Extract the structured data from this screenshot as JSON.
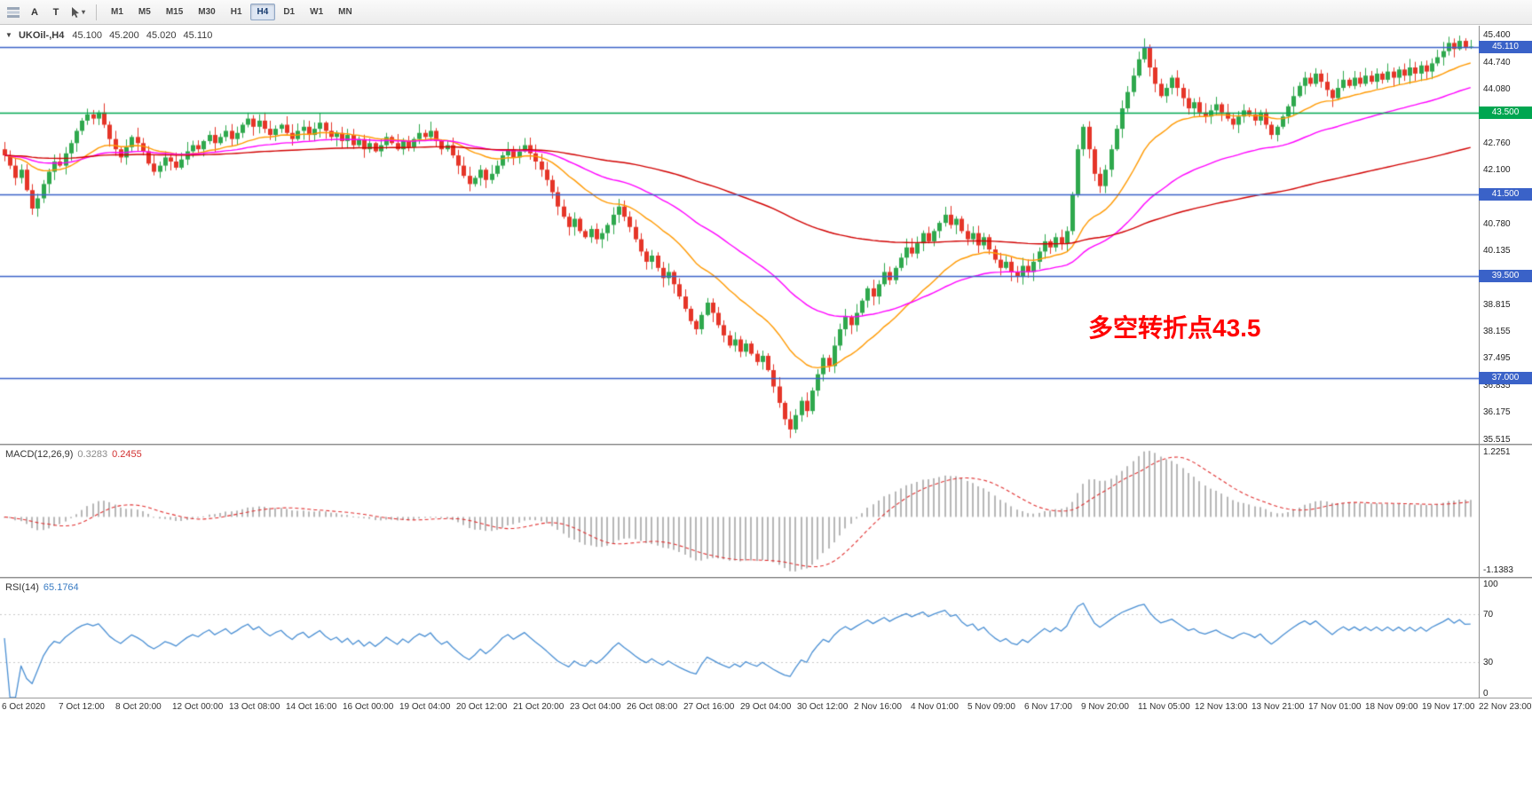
{
  "toolbar": {
    "tools": [
      {
        "label": "A"
      },
      {
        "label": "T"
      }
    ],
    "timeframes": [
      "M1",
      "M5",
      "M15",
      "M30",
      "H1",
      "H4",
      "D1",
      "W1",
      "MN"
    ],
    "active_timeframe": "H4"
  },
  "main_chart": {
    "symbol_period": "UKOil-,H4",
    "ohlc": {
      "open": "45.100",
      "high": "45.200",
      "low": "45.020",
      "close": "45.110"
    },
    "annotation": "多空转折点43.5",
    "y_ticks": [
      "45.400",
      "44.740",
      "44.080",
      "42.760",
      "42.100",
      "40.780",
      "40.135",
      "38.815",
      "38.155",
      "37.495",
      "36.835",
      "36.175",
      "35.515"
    ],
    "price_tags": [
      {
        "label": "45.110",
        "value": 45.11,
        "bg": "#3a62c8"
      },
      {
        "label": "43.500",
        "value": 43.5,
        "bg": "#00a651"
      },
      {
        "label": "41.500",
        "value": 41.5,
        "bg": "#3a62c8"
      },
      {
        "label": "39.500",
        "value": 39.5,
        "bg": "#3a62c8"
      },
      {
        "label": "37.000",
        "value": 37.0,
        "bg": "#3a62c8"
      }
    ],
    "h_lines": [
      {
        "value": 45.11,
        "color": "#3a62c8"
      },
      {
        "value": 43.5,
        "color": "#00a651"
      },
      {
        "value": 41.5,
        "color": "#3a62c8"
      },
      {
        "value": 39.5,
        "color": "#3a62c8"
      },
      {
        "value": 37.0,
        "color": "#3a62c8"
      }
    ],
    "scale": {
      "min": 35.4,
      "max": 45.62
    }
  },
  "macd_panel": {
    "label": "MACD(12,26,9)",
    "values": [
      "0.3283",
      "0.2455"
    ],
    "y_ticks": [
      "1.2251",
      "-1.1383"
    ],
    "params": {
      "fast": 12,
      "slow": 26,
      "signal": 9
    }
  },
  "rsi_panel": {
    "label": "RSI(14)",
    "value": "65.1764",
    "period": 14,
    "y_ticks": [
      "100",
      "70",
      "30",
      "0"
    ],
    "levels": [
      70,
      30
    ]
  },
  "x_axis": {
    "labels": [
      "6 Oct 2020",
      "7 Oct 12:00",
      "8 Oct 20:00",
      "12 Oct 00:00",
      "13 Oct 08:00",
      "14 Oct 16:00",
      "16 Oct 00:00",
      "19 Oct 04:00",
      "20 Oct 12:00",
      "21 Oct 20:00",
      "23 Oct 04:00",
      "26 Oct 08:00",
      "27 Oct 16:00",
      "29 Oct 04:00",
      "30 Oct 12:00",
      "2 Nov 16:00",
      "4 Nov 01:00",
      "5 Nov 09:00",
      "6 Nov 17:00",
      "9 Nov 20:00",
      "11 Nov 05:00",
      "12 Nov 13:00",
      "13 Nov 21:00",
      "17 Nov 01:00",
      "18 Nov 09:00",
      "19 Nov 17:00",
      "22 Nov 23:00"
    ]
  },
  "colors": {
    "up": "#2fa84d",
    "down": "#e53528",
    "macd_hist": "#b7b7b7",
    "macd_signal": "#e03131",
    "rsi": "#4a8fd3",
    "rsi_levels": "#c9c9c9"
  },
  "chart_data": {
    "type": "candlestick",
    "symbol": "UKOil-",
    "timeframe": "H4",
    "first_open": 42.6,
    "closes": [
      42.45,
      42.2,
      41.9,
      42.1,
      41.6,
      41.15,
      41.4,
      41.75,
      42.05,
      42.3,
      42.2,
      42.5,
      42.75,
      43.05,
      43.3,
      43.45,
      43.35,
      43.5,
      43.2,
      42.85,
      42.6,
      42.4,
      42.65,
      42.9,
      42.75,
      42.55,
      42.25,
      42.05,
      42.2,
      42.4,
      42.3,
      42.15,
      42.35,
      42.55,
      42.7,
      42.6,
      42.8,
      42.95,
      42.75,
      42.9,
      43.05,
      42.85,
      43.0,
      43.2,
      43.35,
      43.15,
      43.3,
      43.1,
      42.95,
      43.1,
      43.2,
      43.0,
      42.85,
      43.05,
      43.15,
      42.95,
      43.1,
      43.25,
      43.05,
      42.9,
      43.0,
      42.8,
      42.95,
      42.7,
      42.85,
      42.6,
      42.75,
      42.55,
      42.7,
      42.9,
      42.75,
      42.6,
      42.8,
      42.65,
      42.85,
      43.0,
      42.9,
      43.05,
      42.8,
      42.6,
      42.7,
      42.45,
      42.2,
      41.95,
      41.75,
      41.9,
      42.1,
      41.85,
      42.0,
      42.2,
      42.45,
      42.6,
      42.4,
      42.55,
      42.7,
      42.5,
      42.3,
      42.1,
      41.85,
      41.55,
      41.2,
      40.95,
      40.7,
      40.9,
      40.6,
      40.45,
      40.65,
      40.4,
      40.55,
      40.75,
      41.0,
      41.2,
      40.95,
      40.7,
      40.4,
      40.1,
      39.85,
      40.0,
      39.7,
      39.45,
      39.6,
      39.3,
      39.0,
      38.7,
      38.4,
      38.2,
      38.55,
      38.85,
      38.6,
      38.3,
      38.05,
      37.8,
      37.95,
      37.65,
      37.85,
      37.6,
      37.4,
      37.55,
      37.2,
      36.8,
      36.4,
      36.0,
      35.75,
      36.1,
      36.45,
      36.2,
      36.7,
      37.1,
      37.5,
      37.3,
      37.8,
      38.2,
      38.5,
      38.3,
      38.6,
      38.9,
      39.2,
      39.0,
      39.3,
      39.6,
      39.4,
      39.7,
      39.95,
      40.2,
      40.05,
      40.3,
      40.55,
      40.35,
      40.6,
      40.8,
      41.0,
      40.75,
      40.9,
      40.6,
      40.4,
      40.55,
      40.25,
      40.45,
      40.15,
      39.9,
      39.7,
      39.85,
      39.6,
      39.5,
      39.75,
      39.6,
      39.85,
      40.1,
      40.35,
      40.2,
      40.45,
      40.3,
      40.6,
      41.5,
      42.6,
      43.15,
      42.6,
      42.0,
      41.7,
      42.1,
      42.6,
      43.1,
      43.6,
      44.0,
      44.4,
      44.8,
      45.1,
      44.6,
      44.2,
      43.9,
      44.1,
      44.35,
      44.1,
      43.85,
      43.6,
      43.75,
      43.5,
      43.4,
      43.55,
      43.7,
      43.5,
      43.35,
      43.2,
      43.4,
      43.55,
      43.45,
      43.3,
      43.5,
      43.2,
      42.95,
      43.15,
      43.4,
      43.65,
      43.9,
      44.15,
      44.35,
      44.2,
      44.45,
      44.25,
      44.05,
      43.85,
      44.1,
      44.3,
      44.15,
      44.35,
      44.2,
      44.4,
      44.25,
      44.45,
      44.3,
      44.5,
      44.35,
      44.55,
      44.4,
      44.6,
      44.45,
      44.65,
      44.5,
      44.7,
      44.85,
      45.0,
      45.2,
      45.05,
      45.25,
      45.1,
      45.11
    ],
    "ma_overlays": [
      {
        "period": 21,
        "color": "#ff9900"
      },
      {
        "period": 50,
        "color": "#ff00ff"
      },
      {
        "period": 150,
        "color": "#d10000"
      }
    ]
  }
}
